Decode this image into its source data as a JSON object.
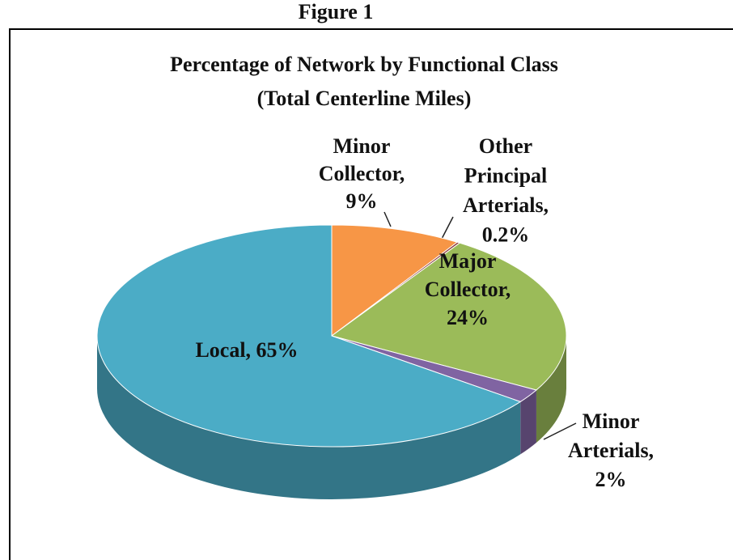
{
  "figure_label": "Figure 1",
  "chart_data": {
    "type": "pie",
    "title": [
      "Percentage of Network by Functional Class",
      "(Total Centerline Miles)"
    ],
    "values": [
      9,
      0.2,
      24,
      2,
      65
    ],
    "value_labels": [
      [
        "Minor",
        "Collector,",
        "9%"
      ],
      [
        "Other",
        "Principal",
        "Arterials,",
        "0.2%"
      ],
      [
        "Major",
        "Collector,",
        "24%"
      ],
      [
        "Minor",
        "Arterials,",
        "2%"
      ],
      [
        "Local, 65%"
      ]
    ],
    "colors": [
      "#f79646",
      "#8b3a3a",
      "#9bbb59",
      "#8064a2",
      "#4bacc6"
    ]
  }
}
